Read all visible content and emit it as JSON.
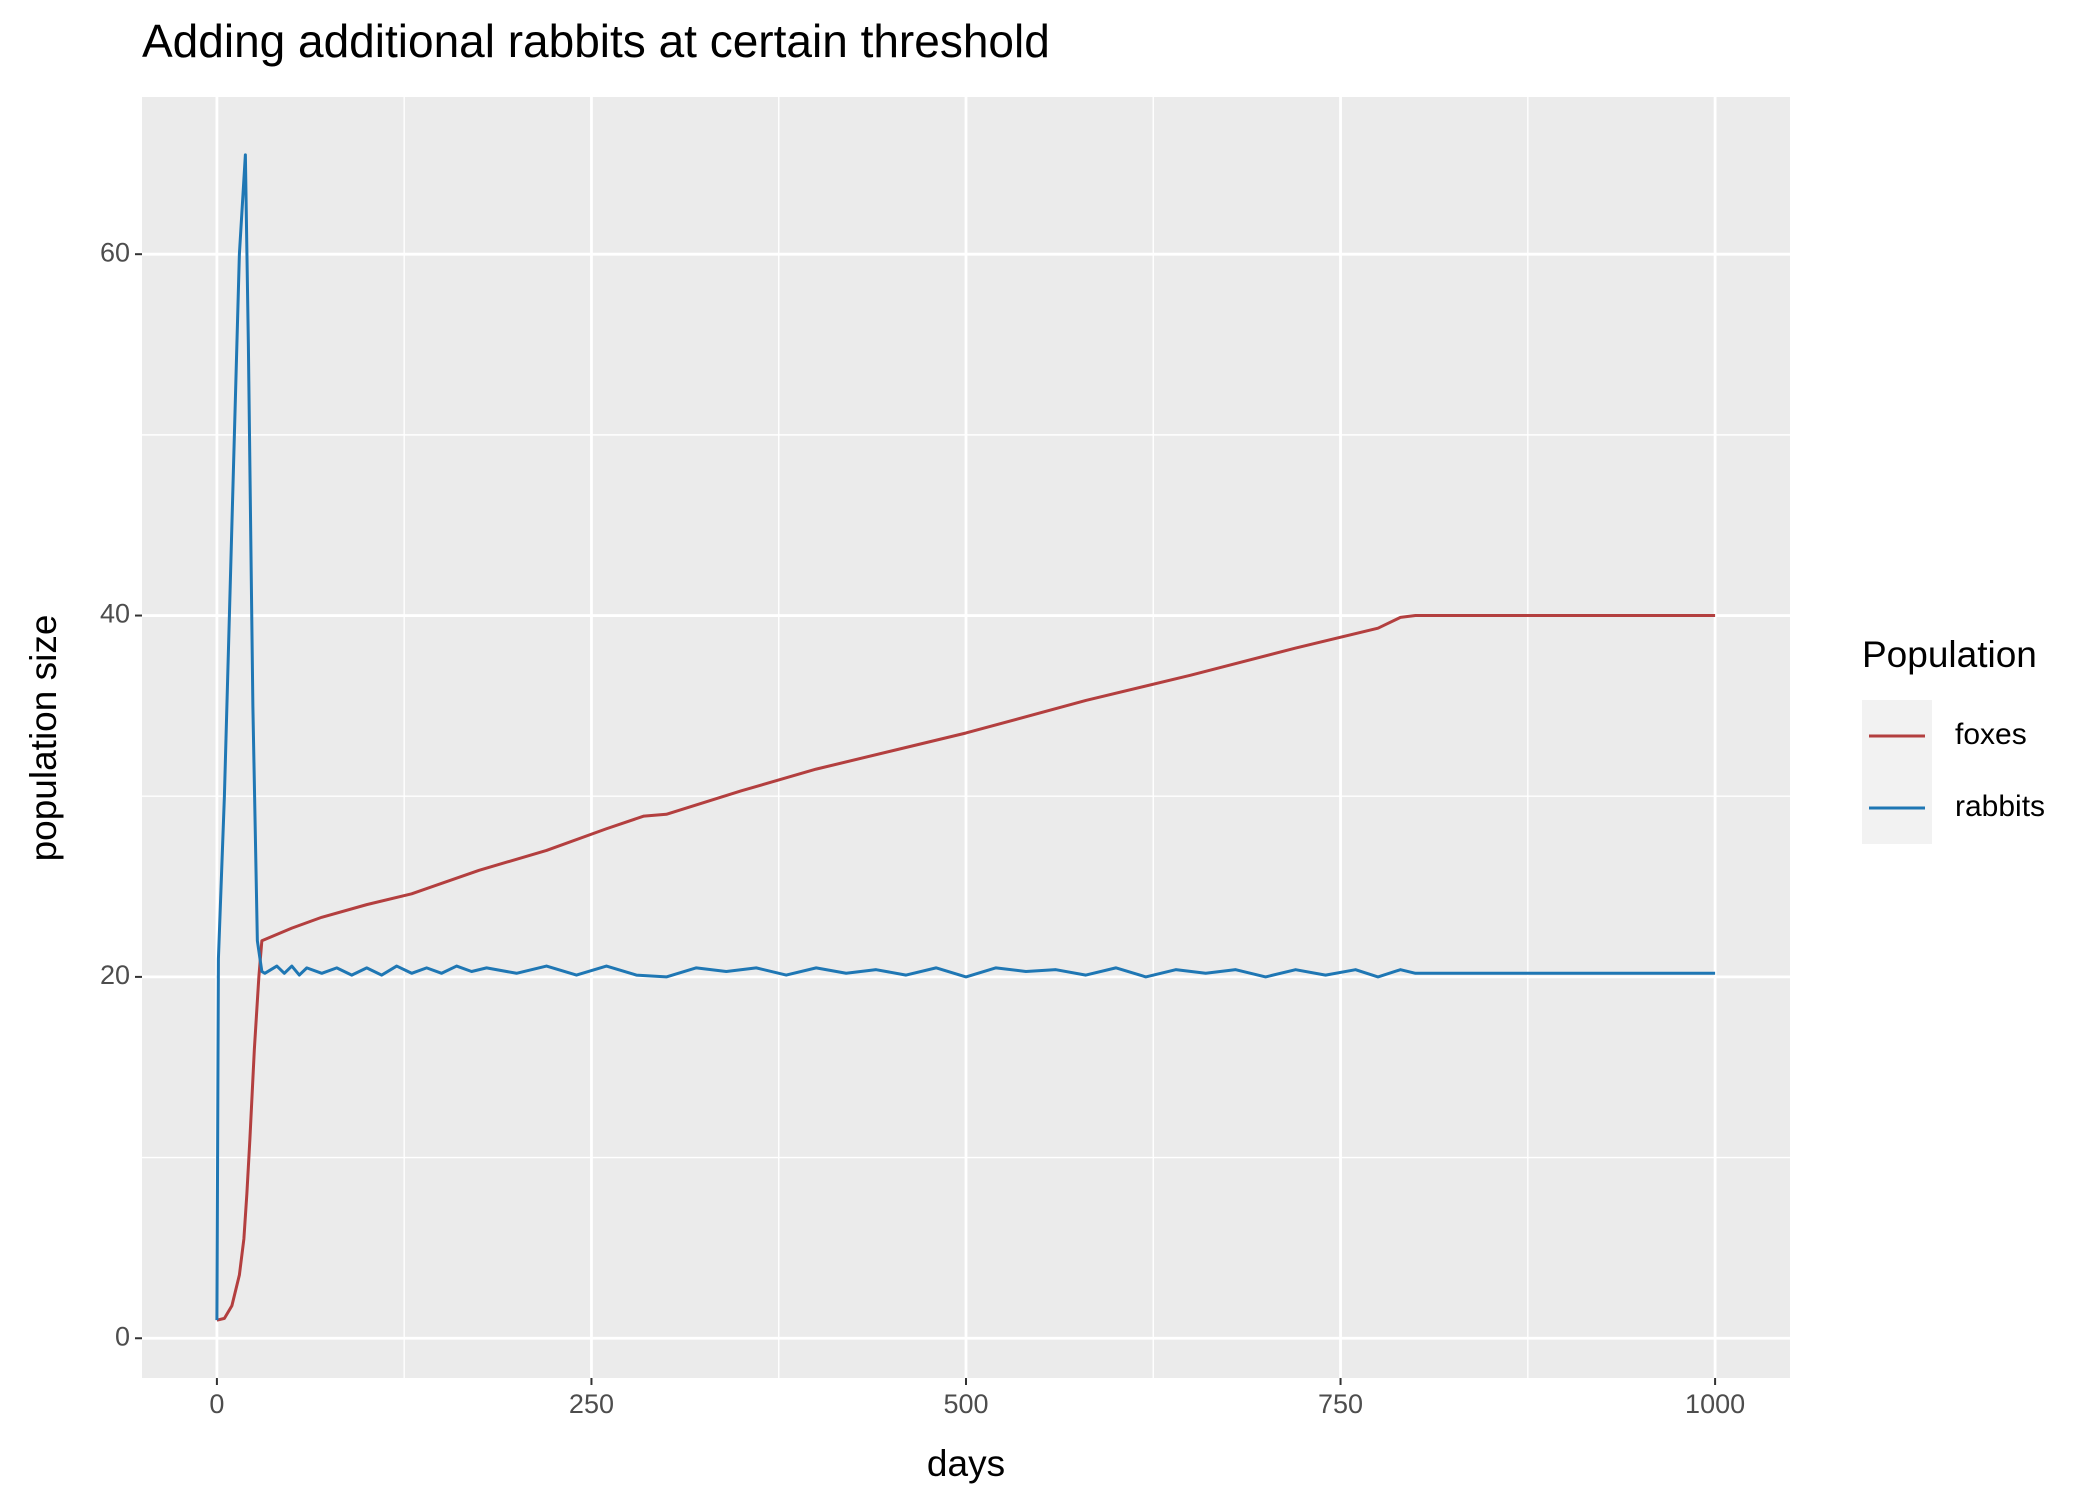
{
  "chart_data": {
    "type": "line",
    "title": "Adding additional rabbits at certain threshold",
    "x_label": "days",
    "y_label": "population size",
    "legend_title": "Population",
    "xlim": [
      -50,
      1050
    ],
    "ylim": [
      -2.2,
      68.7
    ],
    "xticks": [
      0,
      250,
      500,
      750,
      1000
    ],
    "yticks": [
      0,
      20,
      40,
      60
    ],
    "xminor": [
      125,
      375,
      625,
      875
    ],
    "yminor": [
      10,
      30,
      50
    ],
    "grid": true,
    "legend": "right",
    "series": [
      {
        "name": "foxes",
        "color": "#b33f3f",
        "x": [
          0,
          5,
          10,
          15,
          18,
          20,
          22,
          25,
          28,
          30,
          50,
          70,
          100,
          130,
          175,
          220,
          260,
          285,
          300,
          350,
          400,
          455,
          500,
          580,
          650,
          720,
          775,
          780,
          790,
          800,
          850,
          1000
        ],
        "values": [
          1,
          1.1,
          1.8,
          3.5,
          5.5,
          8,
          11,
          16,
          20,
          22,
          22.7,
          23.3,
          24,
          24.6,
          25.9,
          27,
          28.2,
          28.9,
          29,
          30.3,
          31.5,
          32.6,
          33.5,
          35.3,
          36.7,
          38.2,
          39.3,
          39.5,
          39.9,
          40,
          40,
          40
        ]
      },
      {
        "name": "rabbits",
        "color": "#1f77b4",
        "x": [
          0,
          1,
          5,
          10,
          15,
          19,
          21,
          24,
          27,
          30,
          32,
          40,
          45,
          50,
          55,
          60,
          70,
          80,
          90,
          100,
          110,
          120,
          130,
          140,
          150,
          160,
          170,
          180,
          200,
          220,
          240,
          260,
          280,
          300,
          320,
          340,
          360,
          380,
          400,
          420,
          440,
          460,
          480,
          500,
          520,
          540,
          560,
          580,
          600,
          620,
          640,
          660,
          680,
          700,
          720,
          740,
          760,
          775,
          790,
          800,
          1000
        ],
        "values": [
          1,
          21,
          30,
          45,
          60,
          65.5,
          55,
          35,
          22,
          20.3,
          20.2,
          20.6,
          20.2,
          20.6,
          20.1,
          20.5,
          20.2,
          20.5,
          20.1,
          20.5,
          20.1,
          20.6,
          20.2,
          20.5,
          20.2,
          20.6,
          20.3,
          20.5,
          20.2,
          20.6,
          20.1,
          20.6,
          20.1,
          20.0,
          20.5,
          20.3,
          20.5,
          20.1,
          20.5,
          20.2,
          20.4,
          20.1,
          20.5,
          20.0,
          20.5,
          20.3,
          20.4,
          20.1,
          20.5,
          20.0,
          20.4,
          20.2,
          20.4,
          20.0,
          20.4,
          20.1,
          20.4,
          20.0,
          20.4,
          20.2,
          20.2
        ]
      }
    ]
  }
}
